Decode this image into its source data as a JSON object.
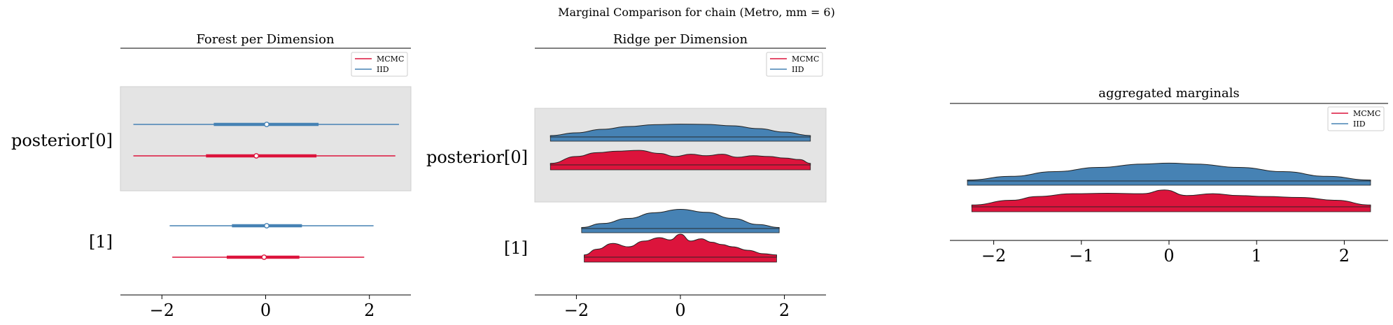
{
  "suptitle": "Marginal Comparison for chain (Metro, mm = 6)",
  "colors": {
    "mcmc": "#dc143c",
    "iid": "#4682b4",
    "band": "#e4e4e4"
  },
  "legend": {
    "position": "top-right",
    "entries": [
      "MCMC",
      "IID"
    ]
  },
  "chart_data": [
    {
      "type": "forest",
      "title": "Forest per Dimension",
      "row_labels": [
        "posterior[0]",
        "[1]"
      ],
      "xlim": [
        -2.8,
        2.8
      ],
      "xticks": [
        -2,
        0,
        2
      ],
      "xtick_labels": [
        "−2",
        "0",
        "2"
      ],
      "series": [
        {
          "name": "IID",
          "rows": [
            {
              "min": -2.55,
              "q1": -1.0,
              "median": 0.02,
              "q3": 1.02,
              "max": 2.57
            },
            {
              "min": -1.85,
              "q1": -0.65,
              "median": 0.02,
              "q3": 0.7,
              "max": 2.08
            }
          ]
        },
        {
          "name": "MCMC",
          "rows": [
            {
              "min": -2.55,
              "q1": -1.15,
              "median": -0.18,
              "q3": 0.98,
              "max": 2.5
            },
            {
              "min": -1.8,
              "q1": -0.75,
              "median": -0.03,
              "q3": 0.65,
              "max": 1.9
            }
          ]
        }
      ]
    },
    {
      "type": "ridge",
      "title": "Ridge per Dimension",
      "row_labels": [
        "posterior[0]",
        "[1]"
      ],
      "xlim": [
        -2.8,
        2.8
      ],
      "xticks": [
        -2,
        0,
        2
      ],
      "xtick_labels": [
        "−2",
        "0",
        "2"
      ],
      "series": [
        {
          "name": "IID",
          "rows": [
            {
              "x": [
                -2.5,
                -2.0,
                -1.5,
                -1.0,
                -0.5,
                0.0,
                0.5,
                1.0,
                1.5,
                2.0,
                2.5
              ],
              "density": [
                0.1,
                0.3,
                0.55,
                0.75,
                0.88,
                0.92,
                0.9,
                0.8,
                0.6,
                0.35,
                0.1
              ]
            },
            {
              "x": [
                -1.9,
                -1.5,
                -1.0,
                -0.5,
                0.0,
                0.5,
                1.0,
                1.5,
                1.9
              ],
              "density": [
                0.05,
                0.25,
                0.5,
                0.78,
                0.95,
                0.8,
                0.5,
                0.2,
                0.05
              ]
            }
          ]
        },
        {
          "name": "MCMC",
          "rows": [
            {
              "x": [
                -2.5,
                -2.0,
                -1.6,
                -1.2,
                -0.8,
                -0.4,
                -0.1,
                0.2,
                0.5,
                0.8,
                1.1,
                1.4,
                1.7,
                2.0,
                2.3,
                2.5
              ],
              "density": [
                0.1,
                0.55,
                0.8,
                0.9,
                0.95,
                0.75,
                0.55,
                0.7,
                0.6,
                0.7,
                0.5,
                0.6,
                0.55,
                0.45,
                0.35,
                0.1
              ]
            },
            {
              "x": [
                -1.85,
                -1.6,
                -1.3,
                -1.0,
                -0.7,
                -0.4,
                -0.2,
                0.0,
                0.2,
                0.4,
                0.6,
                0.8,
                1.0,
                1.3,
                1.6,
                1.85
              ],
              "density": [
                0.1,
                0.35,
                0.6,
                0.45,
                0.7,
                0.85,
                0.75,
                1.0,
                0.7,
                0.8,
                0.65,
                0.55,
                0.45,
                0.3,
                0.15,
                0.1
              ]
            }
          ]
        }
      ]
    },
    {
      "type": "ridge",
      "title": "aggregated marginals",
      "row_labels": [],
      "xlim": [
        -2.5,
        2.5
      ],
      "xticks": [
        -2,
        -1,
        0,
        1,
        2
      ],
      "xtick_labels": [
        "−2",
        "−1",
        "0",
        "1",
        "2"
      ],
      "series": [
        {
          "name": "IID",
          "rows": [
            {
              "x": [
                -2.3,
                -1.8,
                -1.3,
                -0.8,
                -0.3,
                0.0,
                0.3,
                0.8,
                1.3,
                1.8,
                2.3
              ],
              "density": [
                0.05,
                0.25,
                0.5,
                0.72,
                0.9,
                0.95,
                0.9,
                0.72,
                0.5,
                0.25,
                0.05
              ]
            }
          ]
        },
        {
          "name": "MCMC",
          "rows": [
            {
              "x": [
                -2.25,
                -1.8,
                -1.5,
                -1.1,
                -0.7,
                -0.3,
                -0.05,
                0.2,
                0.5,
                0.8,
                1.1,
                1.5,
                1.9,
                2.3
              ],
              "density": [
                0.1,
                0.35,
                0.55,
                0.7,
                0.72,
                0.7,
                0.9,
                0.6,
                0.7,
                0.6,
                0.55,
                0.5,
                0.35,
                0.1
              ]
            }
          ]
        }
      ]
    }
  ]
}
